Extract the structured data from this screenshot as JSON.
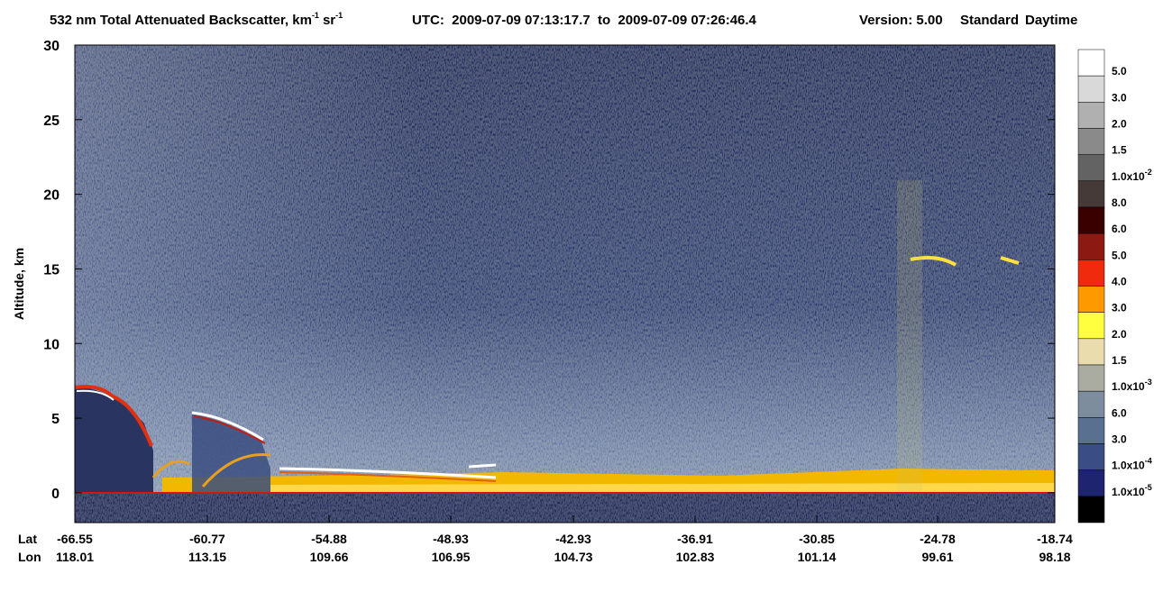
{
  "chart_data": {
    "type": "heatmap",
    "title": {
      "product": "532 nm Total Attenuated Backscatter, km",
      "unit_exp1": "-1",
      "unit_sr": "sr",
      "unit_exp2": "-1",
      "utc": "UTC:  2009-07-09 07:13:17.7  to  2009-07-09 07:26:46.4",
      "version": "Version: 5.00",
      "mode": "Standard",
      "illumination": "Daytime"
    },
    "y_label": "Altitude, km",
    "ylim": [
      -2,
      30
    ],
    "yticks": [
      0,
      5,
      10,
      15,
      20,
      25,
      30
    ],
    "x_rows": [
      "Lat",
      "Lon"
    ],
    "lat": [
      "-66.55",
      "-60.77",
      "-54.88",
      "-48.93",
      "-42.93",
      "-36.91",
      "-30.85",
      "-24.78",
      "-18.74"
    ],
    "lon": [
      "118.01",
      "113.15",
      "109.66",
      "106.95",
      "104.73",
      "102.83",
      "101.14",
      "99.61",
      "98.18"
    ],
    "colorbar": {
      "colors": [
        "#ffffff",
        "#d9d9d9",
        "#b0b0b0",
        "#8a8a8a",
        "#636363",
        "#463a38",
        "#3a0000",
        "#8c1a12",
        "#f02a0c",
        "#ff9900",
        "#ffff40",
        "#eadcad",
        "#aaaca1",
        "#7d8d9d",
        "#597090",
        "#3a4d85",
        "#1e2470",
        "#000000"
      ],
      "labels": [
        {
          "base": "5.0"
        },
        {
          "base": "3.0"
        },
        {
          "base": "2.0"
        },
        {
          "base": "1.5"
        },
        {
          "base": "1.0x10",
          "exp": "-2"
        },
        {
          "base": "8.0"
        },
        {
          "base": "6.0"
        },
        {
          "base": "5.0"
        },
        {
          "base": "4.0"
        },
        {
          "base": "3.0"
        },
        {
          "base": "2.0"
        },
        {
          "base": "1.5"
        },
        {
          "base": "1.0x10",
          "exp": "-3"
        },
        {
          "base": "6.0"
        },
        {
          "base": "3.0"
        },
        {
          "base": "1.0x10",
          "exp": "-4"
        },
        {
          "base": "1.0x10",
          "exp": "-5"
        }
      ]
    }
  }
}
